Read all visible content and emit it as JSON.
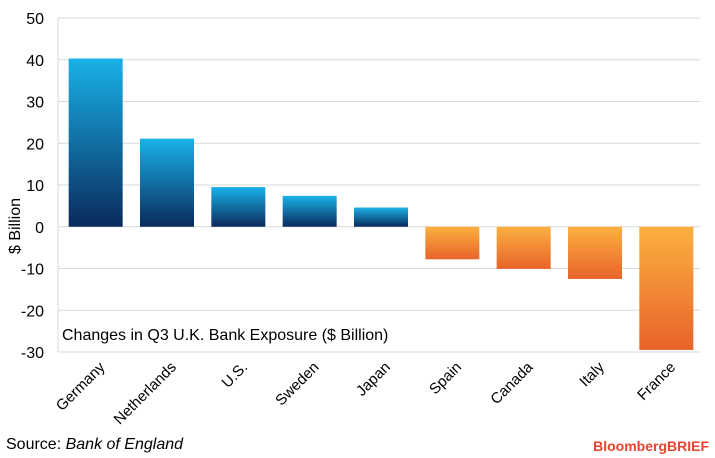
{
  "chart_data": {
    "type": "bar",
    "categories": [
      "Germany",
      "Netherlands",
      "U.S.",
      "Sweden",
      "Japan",
      "Spain",
      "Canada",
      "Italy",
      "France"
    ],
    "values": [
      40.3,
      21.1,
      9.5,
      7.4,
      4.6,
      -7.8,
      -10.1,
      -12.5,
      -29.5
    ],
    "ylabel": "$ Billion",
    "ylim": [
      -30,
      50
    ],
    "yticks": [
      50,
      40,
      30,
      20,
      10,
      0,
      -10,
      -20,
      -30
    ],
    "grid": true,
    "annotation": "Changes in Q3 U.K. Bank Exposure ($ Billion)",
    "colors": {
      "positive_top": "#19b2e8",
      "positive_bottom": "#0a2a5c",
      "negative_top": "#fbb040",
      "negative_bottom": "#e8632a",
      "grid": "#d9d9d9"
    }
  },
  "footer": {
    "source_prefix": "Source:",
    "source_name": "Bank of England",
    "brand": "BloombergBRIEF"
  }
}
